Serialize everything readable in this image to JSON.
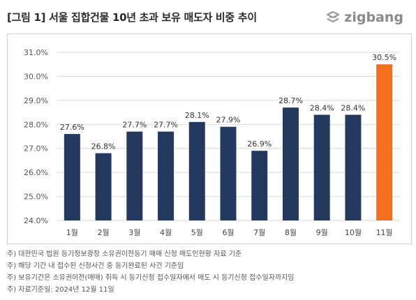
{
  "header": {
    "title": "[그림 1] 서울 집합건물 10년 초과 보유 매도자 비중 추이",
    "logo_text": "zigbang",
    "logo_icon": "zigbang-logo-icon"
  },
  "colors": {
    "bar_default": "#233a5e",
    "bar_highlight": "#f56f1f",
    "grid": "#d9d9d9"
  },
  "chart_data": {
    "type": "bar",
    "title": "",
    "categories": [
      "1월",
      "2월",
      "3월",
      "4월",
      "5월",
      "6월",
      "7월",
      "8월",
      "9월",
      "10월",
      "11월"
    ],
    "values": [
      27.6,
      26.8,
      27.7,
      27.7,
      28.1,
      27.9,
      26.9,
      28.7,
      28.4,
      28.4,
      30.5
    ],
    "data_labels": [
      "27.6%",
      "26.8%",
      "27.7%",
      "27.7%",
      "28.1%",
      "27.9%",
      "26.9%",
      "28.7%",
      "28.4%",
      "28.4%",
      "30.5%"
    ],
    "highlight_index": 10,
    "ylim": [
      24.0,
      31.0
    ],
    "yticks": [
      24.0,
      25.0,
      26.0,
      27.0,
      28.0,
      29.0,
      30.0,
      31.0
    ],
    "ytick_labels": [
      "24.0%",
      "25.0%",
      "26.0%",
      "27.0%",
      "28.0%",
      "29.0%",
      "30.0%",
      "31.0%"
    ],
    "grid": "horizontal",
    "xlabel": "",
    "ylabel": ""
  },
  "notes": [
    "주) 대한민국 법원 등기정보광장 소유권이전등기 매매 신청 매도인현황 자료 기준",
    "주) 해당 기간 내 접수된 신청사건 중 등기완료된 사건 기준임",
    "주) 보유기간은 소유권이전(매매) 취득 시 등기신청 접수일자에서 매도 시 등기신청 접수일자까지임",
    "주) 자료기준일: 2024년 12월 11일"
  ]
}
